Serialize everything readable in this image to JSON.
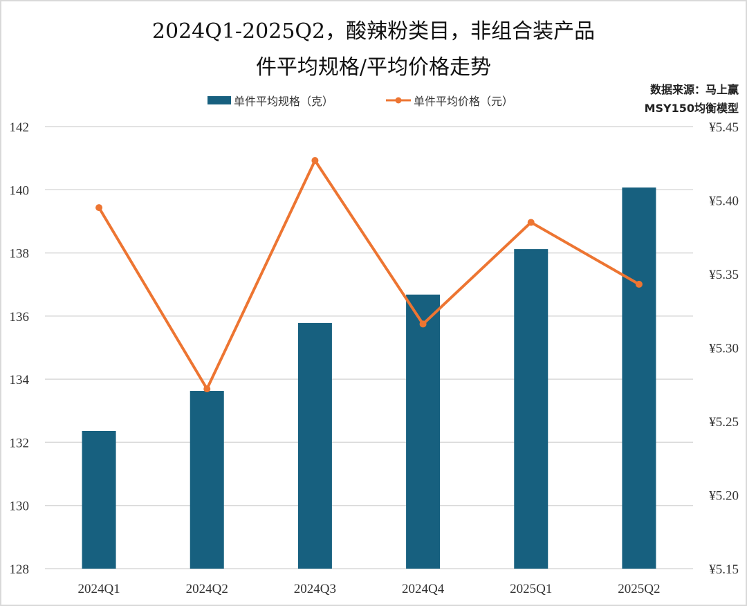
{
  "title_line1": "2024Q1-2025Q2，酸辣粉类目，非组合装产品",
  "title_line2": "件平均规格/平均价格走势",
  "source_line1": "数据来源：马上赢",
  "source_line2": "MSY150均衡模型",
  "colors": {
    "bar": "#17607f",
    "line": "#ed7532",
    "grid": "#d9d9d9"
  },
  "chart_data": {
    "type": "bar+line",
    "title": "2024Q1-2025Q2，酸辣粉类目，非组合装产品 件平均规格/平均价格走势",
    "categories": [
      "2024Q1",
      "2024Q2",
      "2024Q3",
      "2024Q4",
      "2025Q1",
      "2025Q2"
    ],
    "series": [
      {
        "name": "单件平均规格（克）",
        "type": "bar",
        "axis": "left",
        "values": [
          132.36,
          133.63,
          135.78,
          136.68,
          138.12,
          140.07
        ]
      },
      {
        "name": "单件平均价格（元）",
        "type": "line",
        "axis": "right",
        "values": [
          5.395,
          5.272,
          5.427,
          5.316,
          5.385,
          5.343
        ]
      }
    ],
    "left_axis": {
      "ylim": [
        128,
        142
      ],
      "ticks": [
        "128",
        "130",
        "132",
        "134",
        "136",
        "138",
        "140",
        "142"
      ]
    },
    "right_axis": {
      "ylim": [
        5.15,
        5.45
      ],
      "ticks": [
        "¥5.15",
        "¥5.20",
        "¥5.25",
        "¥5.30",
        "¥5.35",
        "¥5.40",
        "¥5.45"
      ]
    },
    "grid": true,
    "legend_position": "top"
  }
}
